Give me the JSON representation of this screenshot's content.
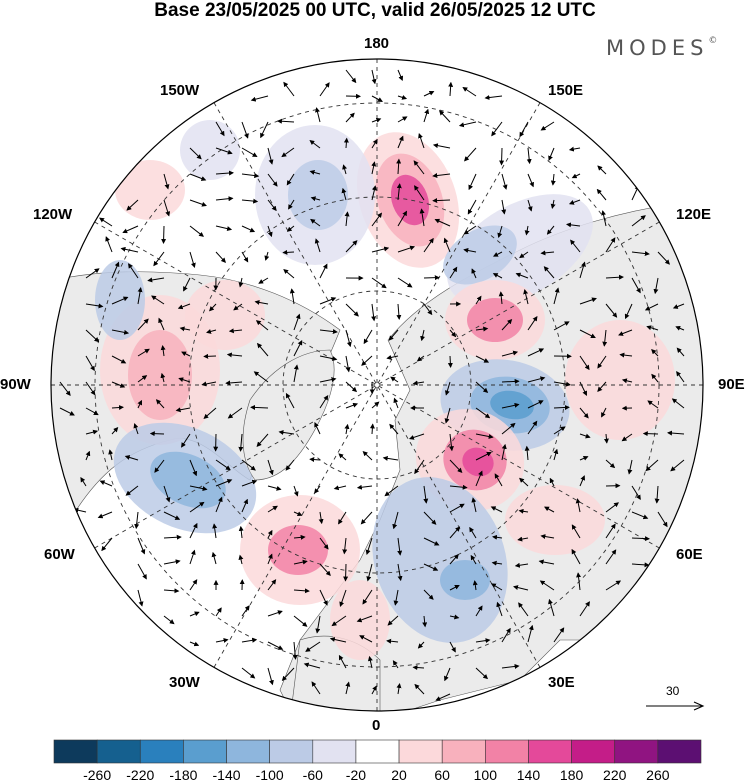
{
  "header": {
    "title": "Base 23/05/2025 00 UTC, valid 26/05/2025 12 UTC",
    "brand": "MODES",
    "brand_mark": "©"
  },
  "map": {
    "projection": "north-polar-stereographic",
    "longitude_labels": {
      "n180": "180",
      "e150": "150E",
      "e120": "120E",
      "e90": "90E",
      "e60": "60E",
      "e30": "30E",
      "n0": "0",
      "w30": "30W",
      "w60": "60W",
      "w90": "90W",
      "w120": "120W",
      "w150": "150W"
    },
    "wind_reference_value": "30",
    "land_color": "#ebebeb",
    "ocean_color": "#ffffff"
  },
  "colorbar": {
    "colors": [
      "#0d3a5c",
      "#15608f",
      "#2a80bd",
      "#5a9ecf",
      "#8eb6dd",
      "#bccbe6",
      "#e2e2f1",
      "#ffffff",
      "#fcd9db",
      "#f8b1bd",
      "#f282a6",
      "#e4499a",
      "#c41d88",
      "#901481",
      "#5c0f72"
    ],
    "labels": [
      "-260",
      "-220",
      "-180",
      "-140",
      "-100",
      "-60",
      "-20",
      "20",
      "60",
      "100",
      "140",
      "180",
      "220",
      "260"
    ]
  }
}
